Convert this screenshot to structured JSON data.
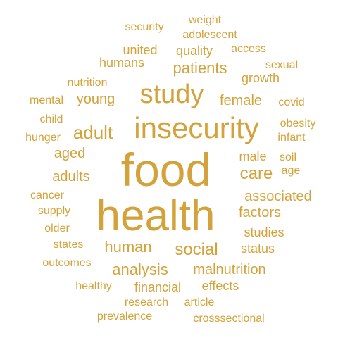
{
  "colors": {
    "word": "#D4A23A",
    "background": "#FFFFFF"
  },
  "words": {
    "food": "food",
    "health": "health",
    "insecurity": "insecurity",
    "study": "study",
    "adult": "adult",
    "care": "care",
    "social": "social",
    "human": "human",
    "analysis": "analysis",
    "patients": "patients",
    "young": "young",
    "female": "female",
    "factors": "factors",
    "associated": "associated",
    "malnutrition": "malnutrition",
    "adults": "adults",
    "aged": "aged",
    "humans": "humans",
    "quality": "quality",
    "united": "united",
    "male": "male",
    "studies": "studies",
    "status": "status",
    "effects": "effects",
    "financial": "financial",
    "growth": "growth",
    "soil": "soil",
    "nutrition": "nutrition",
    "cancer": "cancer",
    "supply": "supply",
    "older": "older",
    "states": "states",
    "outcomes": "outcomes",
    "healthy": "healthy",
    "research": "research",
    "article": "article",
    "prevalence": "prevalence",
    "crosssectional": "crosssectional",
    "mental": "mental",
    "child": "child",
    "hunger": "hunger",
    "security": "security",
    "weight": "weight",
    "adolescent": "adolescent",
    "access": "access",
    "sexual": "sexual",
    "covid": "covid",
    "obesity": "obesity",
    "infant": "infant",
    "age": "age"
  }
}
